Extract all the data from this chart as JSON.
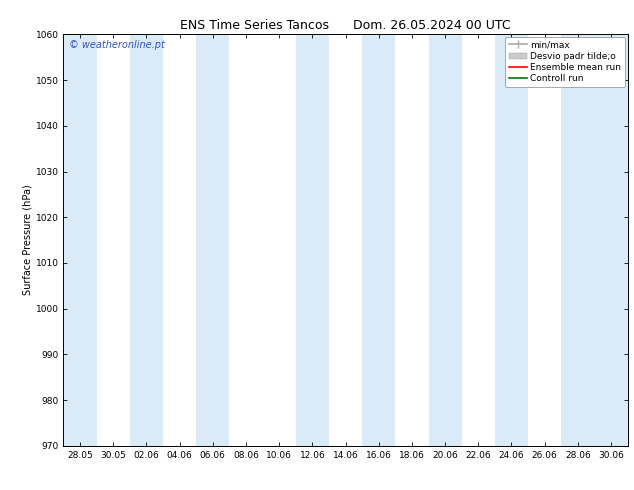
{
  "title_left": "ENS Time Series Tancos",
  "title_right": "Dom. 26.05.2024 00 UTC",
  "ylabel": "Surface Pressure (hPa)",
  "ylim": [
    970,
    1060
  ],
  "yticks": [
    970,
    980,
    990,
    1000,
    1010,
    1020,
    1030,
    1040,
    1050,
    1060
  ],
  "xlabel_ticks": [
    "28.05",
    "30.05",
    "02.06",
    "04.06",
    "06.06",
    "08.06",
    "10.06",
    "12.06",
    "14.06",
    "16.06",
    "18.06",
    "20.06",
    "22.06",
    "24.06",
    "26.06",
    "28.06",
    "30.06"
  ],
  "bg_color": "#ffffff",
  "plot_bg_color": "#ffffff",
  "shaded_band_color": "#daeaf7",
  "watermark_text": "© weatheronline.pt",
  "watermark_color": "#3355cc",
  "legend_entries": [
    {
      "label": "min/max",
      "color": "#aaaaaa",
      "lw": 1.2
    },
    {
      "label": "Desvio padr tilde;o",
      "color": "#cccccc",
      "lw": 6
    },
    {
      "label": "Ensemble mean run",
      "color": "#ff0000",
      "lw": 1.2
    },
    {
      "label": "Controll run",
      "color": "#007700",
      "lw": 1.2
    }
  ],
  "shaded_columns_x": [
    0,
    2,
    4,
    7,
    9,
    11,
    13,
    15,
    16
  ],
  "title_fontsize": 9,
  "axis_label_fontsize": 7,
  "tick_fontsize": 6.5,
  "watermark_fontsize": 7,
  "legend_fontsize": 6.5
}
